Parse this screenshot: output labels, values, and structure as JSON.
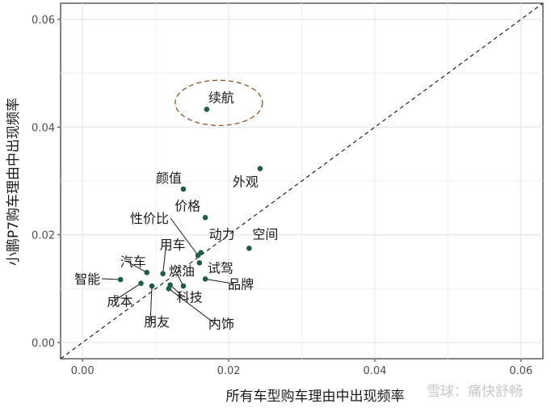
{
  "chart_data": {
    "type": "scatter",
    "title": "",
    "xlabel": "所有车型购车理由中出现频率",
    "ylabel": "小鹏P7购车理由中出现频率",
    "xlim": [
      -0.003,
      0.063
    ],
    "ylim": [
      -0.003,
      0.063
    ],
    "x_ticks": [
      0.0,
      0.02,
      0.04,
      0.06
    ],
    "y_ticks": [
      0.0,
      0.02,
      0.04,
      0.06
    ],
    "x_tick_labels": [
      "0.00",
      "0.02",
      "0.04",
      "0.06"
    ],
    "y_tick_labels": [
      "0.00",
      "0.02",
      "0.04",
      "0.06"
    ],
    "grid": true,
    "reference_line": "y = x (dashed)",
    "point_color": "#1f5c4a",
    "points": [
      {
        "label": "续航",
        "x": 0.017,
        "y": 0.0433
      },
      {
        "label": "外观",
        "x": 0.0243,
        "y": 0.0323
      },
      {
        "label": "颜值",
        "x": 0.0138,
        "y": 0.0285
      },
      {
        "label": "价格",
        "x": 0.0168,
        "y": 0.0232
      },
      {
        "label": "性价比",
        "x": 0.0158,
        "y": 0.0162
      },
      {
        "label": "动力",
        "x": 0.0162,
        "y": 0.0167
      },
      {
        "label": "空间",
        "x": 0.0228,
        "y": 0.0175
      },
      {
        "label": "试驾",
        "x": 0.016,
        "y": 0.0148
      },
      {
        "label": "品牌",
        "x": 0.0168,
        "y": 0.0118
      },
      {
        "label": "用车",
        "x": 0.011,
        "y": 0.0128
      },
      {
        "label": "燃油",
        "x": 0.0138,
        "y": 0.0105
      },
      {
        "label": "科技",
        "x": 0.012,
        "y": 0.0107
      },
      {
        "label": "内饰",
        "x": 0.0118,
        "y": 0.01
      },
      {
        "label": "汽车",
        "x": 0.0088,
        "y": 0.013
      },
      {
        "label": "智能",
        "x": 0.0052,
        "y": 0.0117
      },
      {
        "label": "成本",
        "x": 0.008,
        "y": 0.011
      },
      {
        "label": "朋友",
        "x": 0.0095,
        "y": 0.0105
      }
    ],
    "highlight": "续航"
  },
  "watermark": "雪球：痛快舒畅"
}
